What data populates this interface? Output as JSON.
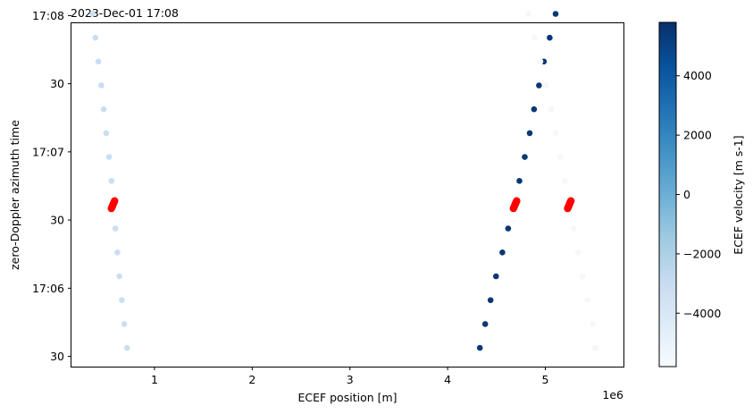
{
  "chart_data": {
    "type": "scatter",
    "title": "2023-Dec-01 17:08",
    "xlabel": "ECEF position [m]",
    "ylabel": "zero-Doppler azimuth time",
    "x_offset_label": "1e6",
    "x_scale": 1000000,
    "xlim": [
      150000,
      5800000
    ],
    "ylim_seconds": [
      -3,
      98
    ],
    "x_ticks": [
      {
        "value": 1000000,
        "label": "1"
      },
      {
        "value": 2000000,
        "label": "2"
      },
      {
        "value": 3000000,
        "label": "3"
      },
      {
        "value": 4000000,
        "label": "4"
      },
      {
        "value": 5000000,
        "label": "5"
      }
    ],
    "y_ticks": [
      {
        "value": 0,
        "label": "30"
      },
      {
        "value": 20,
        "label": "17:06"
      },
      {
        "value": 40,
        "label": "30"
      },
      {
        "value": 60,
        "label": "17:07"
      },
      {
        "value": 80,
        "label": "30"
      },
      {
        "value": 100,
        "label": "17:08"
      }
    ],
    "colorbar": {
      "label": "ECEF velocity [m s-1]",
      "vmin": -5800,
      "vmax": 5800,
      "colormap": [
        "#f7fbff",
        "#deebf7",
        "#c6dbef",
        "#9ecae1",
        "#6baed6",
        "#4292c6",
        "#2171b5",
        "#08519c",
        "#08306b"
      ],
      "ticks": [
        {
          "value": 4000,
          "label": "4000"
        },
        {
          "value": 2000,
          "label": "2000"
        },
        {
          "value": 0,
          "label": "0"
        },
        {
          "value": -2000,
          "label": "−2000"
        },
        {
          "value": -4000,
          "label": "−4000"
        }
      ]
    },
    "series": [
      {
        "velocity": -3200,
        "points": [
          [
            720000,
            2.5
          ],
          [
            690000,
            9.5
          ],
          [
            665000,
            16.5
          ],
          [
            640000,
            23.5
          ],
          [
            620000,
            30.5
          ],
          [
            600000,
            37.5
          ],
          [
            560000,
            51.5
          ],
          [
            535000,
            58.5
          ],
          [
            505000,
            65.5
          ],
          [
            480000,
            72.5
          ],
          [
            455000,
            79.5
          ],
          [
            425000,
            86.5
          ],
          [
            395000,
            93.5
          ],
          [
            365000,
            100.5
          ]
        ]
      },
      {
        "velocity": 5500,
        "points": [
          [
            4330000,
            2.5
          ],
          [
            4385000,
            9.5
          ],
          [
            4440000,
            16.5
          ],
          [
            4495000,
            23.5
          ],
          [
            4560000,
            30.5
          ],
          [
            4620000,
            37.5
          ],
          [
            4735000,
            51.5
          ],
          [
            4790000,
            58.5
          ],
          [
            4840000,
            65.5
          ],
          [
            4885000,
            72.5
          ],
          [
            4935000,
            79.5
          ],
          [
            4985000,
            86.5
          ],
          [
            5045000,
            93.5
          ],
          [
            5105000,
            100.5
          ]
        ]
      },
      {
        "velocity": -5500,
        "points": [
          [
            5510000,
            2.5
          ],
          [
            5485000,
            9.5
          ],
          [
            5430000,
            16.5
          ],
          [
            5380000,
            23.5
          ],
          [
            5335000,
            30.5
          ],
          [
            5290000,
            37.5
          ],
          [
            5200000,
            51.5
          ],
          [
            5155000,
            58.5
          ],
          [
            5105000,
            65.5
          ],
          [
            5060000,
            72.5
          ],
          [
            5010000,
            79.5
          ],
          [
            4950000,
            86.5
          ],
          [
            4890000,
            93.5
          ],
          [
            4825000,
            100.5
          ]
        ]
      }
    ],
    "highlights": {
      "color": "#ff0000",
      "points": [
        [
          575000,
          44.5
        ],
        [
          4690000,
          44.5
        ],
        [
          5245000,
          44.5
        ]
      ]
    }
  }
}
